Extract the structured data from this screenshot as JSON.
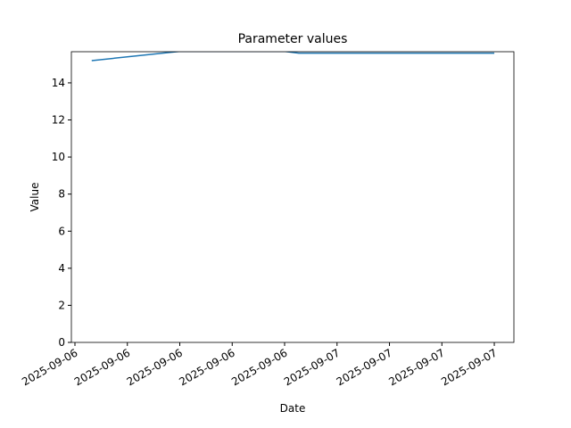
{
  "chart_data": {
    "type": "line",
    "title": "Parameter values",
    "xlabel": "Date",
    "ylabel": "Value",
    "x": [
      0.32,
      2.0,
      4.0,
      4.27,
      8.0
    ],
    "series": [
      {
        "name": "Value",
        "color": "#1f77b4",
        "values": [
          15.2,
          15.7,
          15.7,
          15.6,
          15.6
        ]
      }
    ],
    "xlim": [
      -0.068,
      8.374
    ],
    "xticks": [
      {
        "value": 0,
        "label": "2025-09-06"
      },
      {
        "value": 1,
        "label": "2025-09-06"
      },
      {
        "value": 2,
        "label": "2025-09-06"
      },
      {
        "value": 3,
        "label": "2025-09-06"
      },
      {
        "value": 4,
        "label": "2025-09-06"
      },
      {
        "value": 5,
        "label": "2025-09-07"
      },
      {
        "value": 6,
        "label": "2025-09-07"
      },
      {
        "value": 7,
        "label": "2025-09-07"
      },
      {
        "value": 8,
        "label": "2025-09-07"
      }
    ],
    "ylim": [
      0,
      15.68
    ],
    "yticks": [
      0,
      2,
      4,
      6,
      8,
      10,
      12,
      14
    ],
    "grid": false
  }
}
